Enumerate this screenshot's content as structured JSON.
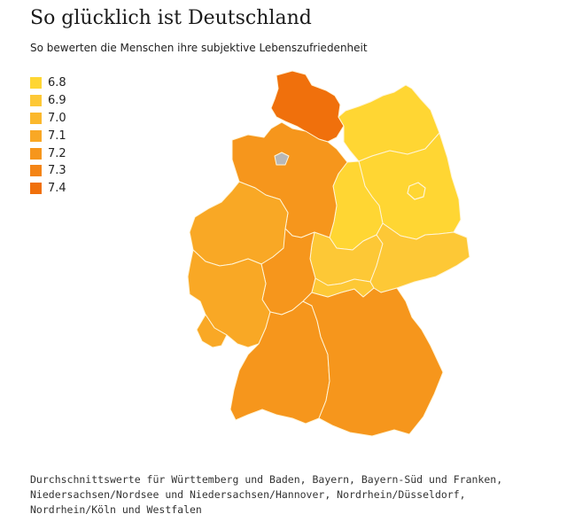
{
  "header": {
    "title": "So glücklich ist Deutschland",
    "subtitle": "So bewerten die Menschen ihre subjektive Lebenszufriedenheit"
  },
  "legend": {
    "items": [
      {
        "label": "6.8",
        "color": "#ffd633"
      },
      {
        "label": "6.9",
        "color": "#fdc836"
      },
      {
        "label": "7.0",
        "color": "#fbb82c"
      },
      {
        "label": "7.1",
        "color": "#f9a825"
      },
      {
        "label": "7.2",
        "color": "#f6961c"
      },
      {
        "label": "7.3",
        "color": "#f48415"
      },
      {
        "label": "7.4",
        "color": "#f0700c"
      }
    ]
  },
  "regions": [
    {
      "name": "Schleswig-Holstein",
      "value": 7.4
    },
    {
      "name": "Mecklenburg-Vorpommern",
      "value": 6.8
    },
    {
      "name": "Brandenburg",
      "value": 6.8
    },
    {
      "name": "Sachsen-Anhalt",
      "value": 6.8
    },
    {
      "name": "Thüringen",
      "value": 6.9
    },
    {
      "name": "Sachsen",
      "value": 6.9
    },
    {
      "name": "Niedersachsen",
      "value": 7.2
    },
    {
      "name": "Nordrhein-Westfalen",
      "value": 7.1
    },
    {
      "name": "Hessen",
      "value": 7.2
    },
    {
      "name": "Rheinland-Pfalz",
      "value": 7.1
    },
    {
      "name": "Saarland",
      "value": 7.1
    },
    {
      "name": "Baden-Württemberg",
      "value": 7.2
    },
    {
      "name": "Bayern",
      "value": 7.2
    },
    {
      "name": "Franken",
      "value": 6.9
    }
  ],
  "footnote": "Durchschnittswerte für Württemberg und Baden, Bayern, Bayern-Süd und Franken, Niedersachsen/Nordsee und Niedersachsen/Hannover, Nordrhein/Düsseldorf, Nordrhein/Köln und Westfalen"
}
